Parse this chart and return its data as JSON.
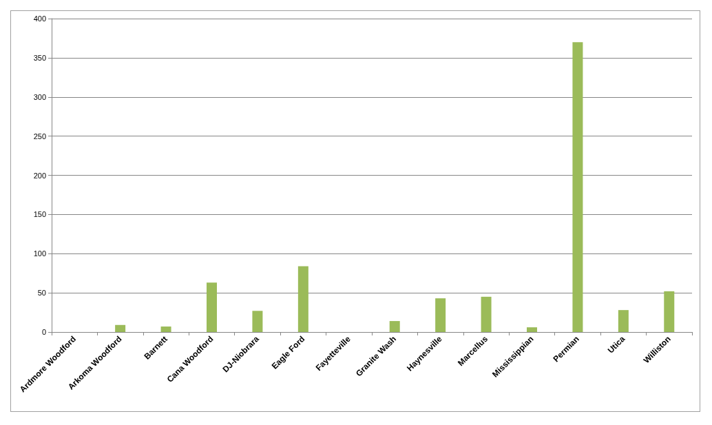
{
  "chart_data": {
    "type": "bar",
    "categories": [
      "Ardmore Woodford",
      "Arkoma Woodford",
      "Barnett",
      "Cana Woodford",
      "DJ-Niobrara",
      "Eagle Ford",
      "Fayetteville",
      "Granite Wash",
      "Haynesville",
      "Marcellus",
      "Mississippian",
      "Permian",
      "Utica",
      "Williston"
    ],
    "values": [
      0,
      9,
      7,
      63,
      27,
      84,
      0,
      14,
      43,
      45,
      6,
      370,
      28,
      52
    ],
    "color": "#9bbb59",
    "ylim": [
      0,
      400
    ],
    "yticks": [
      0,
      50,
      100,
      150,
      200,
      250,
      300,
      350,
      400
    ],
    "grid": "y"
  }
}
